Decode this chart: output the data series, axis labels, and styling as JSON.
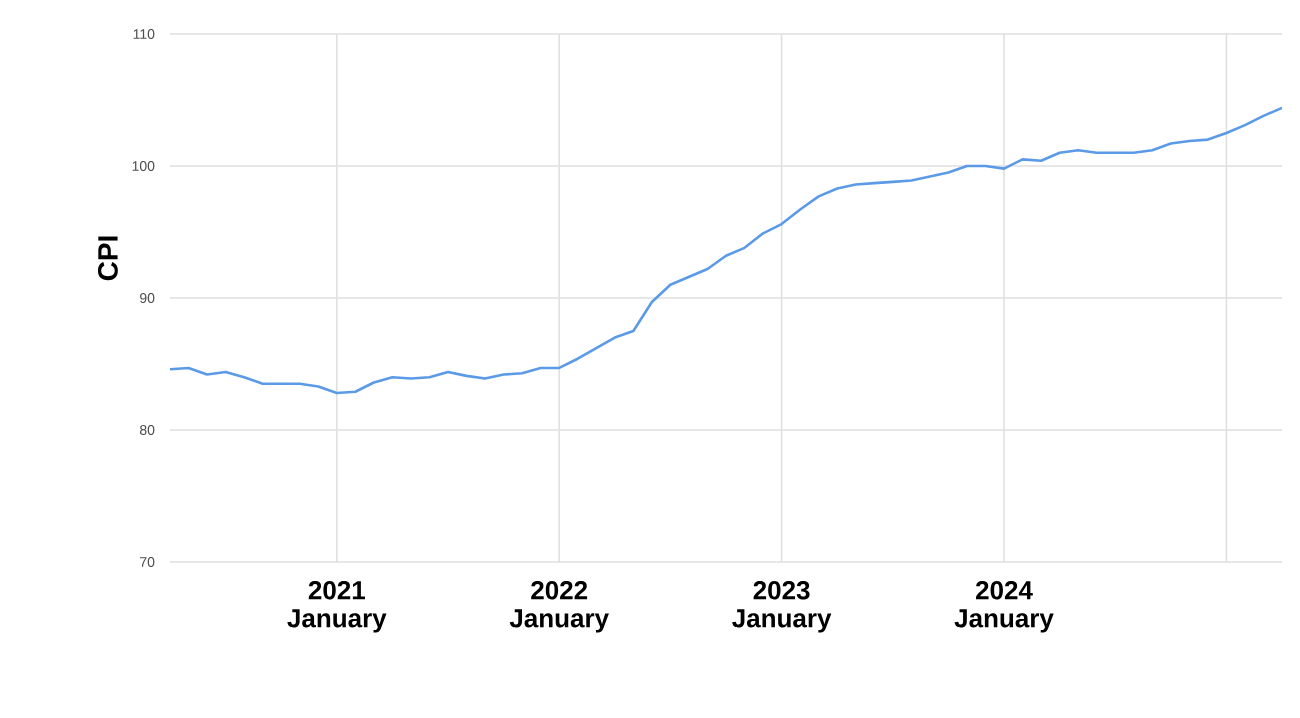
{
  "chart_data": {
    "type": "line",
    "ylabel": "CPI",
    "x": [
      "2020-04",
      "2020-05",
      "2020-06",
      "2020-07",
      "2020-08",
      "2020-09",
      "2020-10",
      "2020-11",
      "2020-12",
      "2021-01",
      "2021-02",
      "2021-03",
      "2021-04",
      "2021-05",
      "2021-06",
      "2021-07",
      "2021-08",
      "2021-09",
      "2021-10",
      "2021-11",
      "2021-12",
      "2022-01",
      "2022-02",
      "2022-03",
      "2022-04",
      "2022-05",
      "2022-06",
      "2022-07",
      "2022-08",
      "2022-09",
      "2022-10",
      "2022-11",
      "2022-12",
      "2023-01",
      "2023-02",
      "2023-03",
      "2023-04",
      "2023-05",
      "2023-06",
      "2023-07",
      "2023-08",
      "2023-09",
      "2023-10",
      "2023-11",
      "2023-12",
      "2024-01",
      "2024-02",
      "2024-03",
      "2024-04",
      "2024-05",
      "2024-06",
      "2024-07",
      "2024-08",
      "2024-09",
      "2024-10",
      "2024-11",
      "2024-12",
      "2025-01",
      "2025-02",
      "2025-03",
      "2025-04"
    ],
    "series": [
      {
        "color": "#5b9ae6",
        "values": [
          84.6,
          84.7,
          84.2,
          84.4,
          84.0,
          83.5,
          83.5,
          83.5,
          83.3,
          82.8,
          82.9,
          83.6,
          84.0,
          83.9,
          84.0,
          84.4,
          84.1,
          83.9,
          84.2,
          84.3,
          84.7,
          84.7,
          85.4,
          86.2,
          87.0,
          87.5,
          89.7,
          91.0,
          91.6,
          92.2,
          93.2,
          93.8,
          94.9,
          95.6,
          96.7,
          97.7,
          98.3,
          98.6,
          98.7,
          98.8,
          98.9,
          99.2,
          99.5,
          100.0,
          100.0,
          99.8,
          100.5,
          100.4,
          101.0,
          101.2,
          101.0,
          101.0,
          101.0,
          101.2,
          101.7,
          101.9,
          102.0,
          102.5,
          103.1,
          103.8,
          104.4
        ]
      }
    ],
    "xlim": [
      "2020-04",
      "2025-04"
    ],
    "xticks": [
      {
        "value": "2021-01",
        "label": "2021 January"
      },
      {
        "value": "2022-01",
        "label": "2022 January"
      },
      {
        "value": "2023-01",
        "label": "2023 January"
      },
      {
        "value": "2024-01",
        "label": "2024 January"
      },
      {
        "value": "2025-01",
        "label": null
      }
    ],
    "ylim": [
      70,
      110
    ],
    "yticks": [
      70,
      80,
      90,
      100,
      110
    ],
    "grid": true,
    "legend": false,
    "marker": "none",
    "line_style": "solid"
  }
}
